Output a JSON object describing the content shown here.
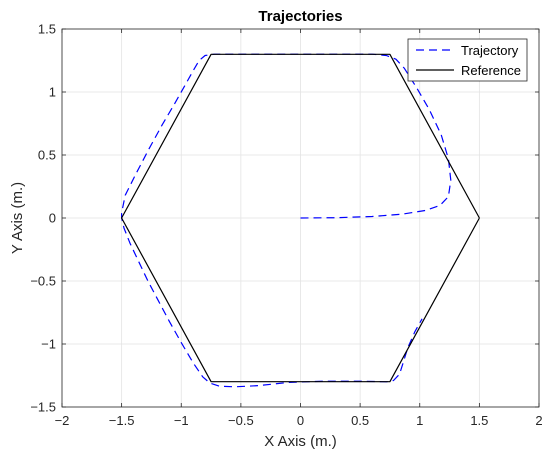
{
  "chart_data": {
    "type": "line",
    "title": "Trajectories",
    "xlabel": "X Axis (m.)",
    "ylabel": "Y Axis (m.)",
    "xlim": [
      -2,
      2
    ],
    "ylim": [
      -1.5,
      1.5
    ],
    "grid": true,
    "legend_position": "top-right",
    "xticks": [
      {
        "value": -2,
        "label": "−2"
      },
      {
        "value": -1.5,
        "label": "−1.5"
      },
      {
        "value": -1,
        "label": "−1"
      },
      {
        "value": -0.5,
        "label": "−0.5"
      },
      {
        "value": 0,
        "label": "0"
      },
      {
        "value": 0.5,
        "label": "0.5"
      },
      {
        "value": 1,
        "label": "1"
      },
      {
        "value": 1.5,
        "label": "1.5"
      },
      {
        "value": 2,
        "label": "2"
      }
    ],
    "yticks": [
      {
        "value": -1.5,
        "label": "−1.5"
      },
      {
        "value": -1,
        "label": "−1"
      },
      {
        "value": -0.5,
        "label": "−0.5"
      },
      {
        "value": 0,
        "label": "0"
      },
      {
        "value": 0.5,
        "label": "0.5"
      },
      {
        "value": 1,
        "label": "1"
      },
      {
        "value": 1.5,
        "label": "1.5"
      }
    ],
    "series": [
      {
        "name": "Trajectory",
        "color": "#0000ff",
        "style": "dashed",
        "points": [
          [
            0,
            0
          ],
          [
            0.3,
            0.002
          ],
          [
            0.6,
            0.012
          ],
          [
            0.85,
            0.03
          ],
          [
            1.05,
            0.06
          ],
          [
            1.17,
            0.1
          ],
          [
            1.24,
            0.17
          ],
          [
            1.26,
            0.3
          ],
          [
            1.24,
            0.47
          ],
          [
            1.18,
            0.66
          ],
          [
            1.08,
            0.86
          ],
          [
            0.97,
            1.04
          ],
          [
            0.87,
            1.19
          ],
          [
            0.8,
            1.26
          ],
          [
            0.72,
            1.29
          ],
          [
            0.6,
            1.3
          ],
          [
            0.4,
            1.3
          ],
          [
            0.0,
            1.3
          ],
          [
            -0.4,
            1.3
          ],
          [
            -0.72,
            1.3
          ],
          [
            -0.8,
            1.29
          ],
          [
            -0.85,
            1.25
          ],
          [
            -0.9,
            1.17
          ],
          [
            -0.97,
            1.05
          ],
          [
            -1.06,
            0.9
          ],
          [
            -1.16,
            0.74
          ],
          [
            -1.27,
            0.55
          ],
          [
            -1.38,
            0.35
          ],
          [
            -1.47,
            0.18
          ],
          [
            -1.5,
            0.04
          ],
          [
            -1.5,
            0.0
          ],
          [
            -1.48,
            -0.08
          ],
          [
            -1.43,
            -0.2
          ],
          [
            -1.36,
            -0.34
          ],
          [
            -1.28,
            -0.5
          ],
          [
            -1.19,
            -0.66
          ],
          [
            -1.1,
            -0.82
          ],
          [
            -1.0,
            -0.99
          ],
          [
            -0.9,
            -1.15
          ],
          [
            -0.82,
            -1.26
          ],
          [
            -0.76,
            -1.31
          ],
          [
            -0.68,
            -1.335
          ],
          [
            -0.55,
            -1.34
          ],
          [
            -0.35,
            -1.33
          ],
          [
            -0.1,
            -1.305
          ],
          [
            0.2,
            -1.295
          ],
          [
            0.5,
            -1.295
          ],
          [
            0.72,
            -1.3
          ],
          [
            0.78,
            -1.29
          ],
          [
            0.83,
            -1.24
          ],
          [
            0.86,
            -1.15
          ],
          [
            0.9,
            -1.03
          ],
          [
            0.96,
            -0.9
          ],
          [
            1.02,
            -0.8
          ]
        ]
      },
      {
        "name": "Reference",
        "color": "#000000",
        "style": "solid",
        "points": [
          [
            1.5,
            0
          ],
          [
            0.75,
            1.299
          ],
          [
            -0.75,
            1.299
          ],
          [
            -1.5,
            0
          ],
          [
            -0.75,
            -1.299
          ],
          [
            0.75,
            -1.299
          ],
          [
            1.5,
            0
          ]
        ]
      }
    ]
  }
}
